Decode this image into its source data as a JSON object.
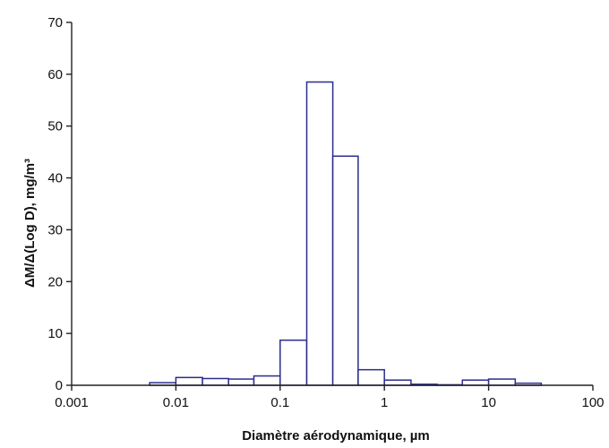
{
  "chart_data": {
    "type": "bar",
    "xscale": "log",
    "xlabel": "Diamètre aérodynamique, µm",
    "ylabel": "ΔM/Δ(Log D), mg/m³",
    "xlim": [
      0.001,
      100
    ],
    "ylim": [
      0,
      70
    ],
    "xticks": [
      "0.001",
      "0.01",
      "0.1",
      "1",
      "10",
      "100"
    ],
    "yticks": [
      "0",
      "10",
      "20",
      "30",
      "40",
      "50",
      "60",
      "70"
    ],
    "grid": false,
    "bins": [
      {
        "x0": 0.0056,
        "x1": 0.01,
        "value": 0.5
      },
      {
        "x0": 0.01,
        "x1": 0.018,
        "value": 1.5
      },
      {
        "x0": 0.018,
        "x1": 0.032,
        "value": 1.3
      },
      {
        "x0": 0.032,
        "x1": 0.056,
        "value": 1.2
      },
      {
        "x0": 0.056,
        "x1": 0.1,
        "value": 1.8
      },
      {
        "x0": 0.1,
        "x1": 0.18,
        "value": 8.7
      },
      {
        "x0": 0.18,
        "x1": 0.32,
        "value": 58.5
      },
      {
        "x0": 0.32,
        "x1": 0.56,
        "value": 44.2
      },
      {
        "x0": 0.56,
        "x1": 1.0,
        "value": 3.0
      },
      {
        "x0": 1.0,
        "x1": 1.8,
        "value": 1.0
      },
      {
        "x0": 1.8,
        "x1": 3.2,
        "value": 0.2
      },
      {
        "x0": 3.2,
        "x1": 5.6,
        "value": 0.1
      },
      {
        "x0": 5.6,
        "x1": 10,
        "value": 1.0
      },
      {
        "x0": 10,
        "x1": 18,
        "value": 1.2
      },
      {
        "x0": 18,
        "x1": 32,
        "value": 0.4
      }
    ]
  }
}
